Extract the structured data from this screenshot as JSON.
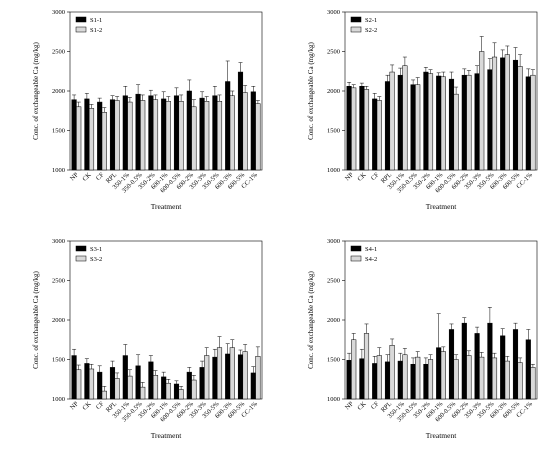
{
  "chart_data": [
    {
      "type": "bar",
      "xlabel": "Treatment",
      "ylabel": "Conc. of exchangeable Ca (mg/kg)",
      "legend": "upper left",
      "categories": [
        "NP",
        "CK",
        "CF",
        "RPL",
        "350-1%",
        "350-0.5%",
        "350-2%",
        "600-1%",
        "600-0.5%",
        "600-2%",
        "350-3%",
        "350-5%",
        "600-3%",
        "600-5%",
        "CC-1%"
      ],
      "ylim": [
        1000,
        3000
      ],
      "yticks": [
        1000,
        1500,
        2000,
        2500,
        3000
      ],
      "series": [
        {
          "name": "S1-1",
          "color": "#000000",
          "values": [
            1890,
            1900,
            1860,
            1890,
            1940,
            1960,
            1940,
            1900,
            1940,
            2000,
            1910,
            1940,
            2120,
            2240,
            1990
          ],
          "errors": [
            60,
            70,
            50,
            50,
            120,
            120,
            70,
            90,
            100,
            140,
            80,
            120,
            260,
            120,
            70
          ]
        },
        {
          "name": "S1-2",
          "color": "#d9d9d9",
          "values": [
            1800,
            1780,
            1730,
            1880,
            1860,
            1880,
            1890,
            1870,
            1870,
            1800,
            1870,
            1870,
            1940,
            1980,
            1840
          ],
          "errors": [
            60,
            50,
            60,
            50,
            60,
            70,
            60,
            60,
            80,
            90,
            60,
            80,
            60,
            90,
            40
          ]
        }
      ]
    },
    {
      "type": "bar",
      "xlabel": "Treatment",
      "ylabel": "Conc. of exchangeable Ca (mg/kg)",
      "legend": "upper left",
      "categories": [
        "NP",
        "CK",
        "CF",
        "RPL",
        "350-1%",
        "350-0.5%",
        "350-2%",
        "600-1%",
        "600-0.5%",
        "600-2%",
        "350-3%",
        "350-5%",
        "600-3%",
        "600-5%",
        "CC-1%"
      ],
      "ylim": [
        1000,
        3000
      ],
      "yticks": [
        1000,
        1500,
        2000,
        2500,
        3000
      ],
      "series": [
        {
          "name": "S2-1",
          "color": "#000000",
          "values": [
            2060,
            2060,
            1900,
            2120,
            2200,
            2080,
            2240,
            2190,
            2150,
            2200,
            2220,
            2270,
            2420,
            2390,
            2180
          ],
          "errors": [
            50,
            40,
            70,
            80,
            90,
            60,
            60,
            40,
            90,
            80,
            100,
            140,
            100,
            160,
            100
          ]
        },
        {
          "name": "S2-2",
          "color": "#d9d9d9",
          "values": [
            2040,
            2020,
            1880,
            2240,
            2320,
            2080,
            2220,
            2180,
            1960,
            2200,
            2500,
            2430,
            2460,
            2310,
            2200
          ],
          "errors": [
            40,
            40,
            50,
            90,
            110,
            90,
            50,
            60,
            90,
            60,
            190,
            180,
            110,
            150,
            70
          ]
        }
      ]
    },
    {
      "type": "bar",
      "xlabel": "Treatment",
      "ylabel": "Conc. of exchangeable Ca (mg/kg)",
      "legend": "upper left",
      "categories": [
        "NP",
        "CK",
        "CF",
        "RPL",
        "350-1%",
        "350-0.5%",
        "350-2%",
        "600-1%",
        "600-0.5%",
        "600-2%",
        "350-3%",
        "350-5%",
        "600-3%",
        "600-5%",
        "CC-1%"
      ],
      "ylim": [
        1000,
        3000
      ],
      "yticks": [
        1000,
        1500,
        2000,
        2500,
        3000
      ],
      "series": [
        {
          "name": "S3-1",
          "color": "#000000",
          "values": [
            1550,
            1450,
            1340,
            1400,
            1550,
            1420,
            1470,
            1280,
            1190,
            1340,
            1400,
            1530,
            1570,
            1560,
            1330
          ],
          "errors": [
            80,
            60,
            80,
            80,
            140,
            140,
            80,
            60,
            40,
            60,
            80,
            100,
            130,
            60,
            80
          ]
        },
        {
          "name": "S3-2",
          "color": "#d9d9d9",
          "values": [
            1370,
            1380,
            1100,
            1260,
            1290,
            1150,
            1300,
            1200,
            1120,
            1240,
            1550,
            1650,
            1650,
            1600,
            1540
          ],
          "errors": [
            60,
            60,
            60,
            70,
            80,
            60,
            60,
            50,
            40,
            60,
            100,
            140,
            100,
            90,
            120
          ]
        }
      ]
    },
    {
      "type": "bar",
      "xlabel": "Treatment",
      "ylabel": "Conc. of exchangeable Ca (mg/kg)",
      "legend": "upper left",
      "categories": [
        "NP",
        "CK",
        "CF",
        "RPL",
        "350-1%",
        "350-0.5%",
        "350-2%",
        "600-1%",
        "600-0.5%",
        "600-2%",
        "350-3%",
        "350-5%",
        "600-3%",
        "600-5%",
        "CC-1%"
      ],
      "ylim": [
        1000,
        3000
      ],
      "yticks": [
        1000,
        1500,
        2000,
        2500,
        3000
      ],
      "series": [
        {
          "name": "S4-1",
          "color": "#000000",
          "values": [
            1490,
            1510,
            1450,
            1470,
            1480,
            1440,
            1440,
            1650,
            1880,
            1960,
            1830,
            1960,
            1800,
            1880,
            1750
          ],
          "errors": [
            90,
            120,
            90,
            90,
            100,
            80,
            80,
            430,
            70,
            70,
            80,
            200,
            90,
            80,
            130
          ]
        },
        {
          "name": "S4-2",
          "color": "#d9d9d9",
          "values": [
            1750,
            1830,
            1550,
            1680,
            1560,
            1530,
            1500,
            1600,
            1500,
            1550,
            1530,
            1520,
            1480,
            1460,
            1400
          ],
          "errors": [
            80,
            120,
            100,
            80,
            80,
            70,
            60,
            60,
            60,
            60,
            60,
            60,
            60,
            60,
            40
          ]
        }
      ]
    }
  ]
}
